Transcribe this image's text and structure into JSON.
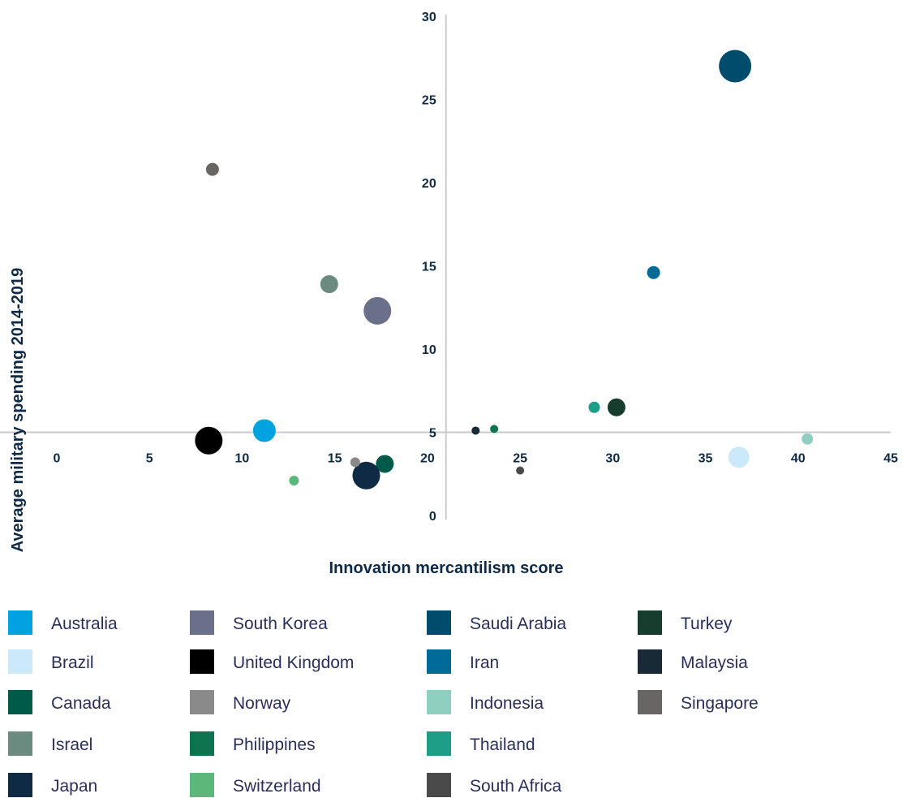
{
  "chart_data": {
    "type": "scatter",
    "title": "",
    "xlabel": "Innovation mercantilism score",
    "ylabel": "Average military spending 2014-2019",
    "xlim": [
      0,
      45
    ],
    "ylim": [
      0,
      30
    ],
    "x_ticks": [
      0,
      5,
      10,
      15,
      20,
      25,
      30,
      35,
      40,
      45
    ],
    "y_ticks": [
      0,
      5,
      10,
      15,
      20,
      25,
      30
    ],
    "axis_cross": {
      "x": 21,
      "y": 5
    },
    "grid": false,
    "legend_position": "bottom",
    "series": [
      {
        "name": "Australia",
        "color": "#00a3e0",
        "x": 11.2,
        "y": 5.1,
        "size": 14
      },
      {
        "name": "Brazil",
        "color": "#cce9fa",
        "x": 36.8,
        "y": 3.5,
        "size": 13
      },
      {
        "name": "Canada",
        "color": "#005a4a",
        "x": 17.7,
        "y": 3.1,
        "size": 11
      },
      {
        "name": "Israel",
        "color": "#6b8a80",
        "x": 14.7,
        "y": 13.9,
        "size": 11
      },
      {
        "name": "Japan",
        "color": "#0f2a44",
        "x": 16.7,
        "y": 2.4,
        "size": 17
      },
      {
        "name": "South Korea",
        "color": "#6a7089",
        "x": 17.3,
        "y": 12.3,
        "size": 17
      },
      {
        "name": "United Kingdom",
        "color": "#000000",
        "x": 8.2,
        "y": 4.5,
        "size": 17
      },
      {
        "name": "Norway",
        "color": "#8a8a8a",
        "x": 16.1,
        "y": 3.2,
        "size": 6
      },
      {
        "name": "Philippines",
        "color": "#0e7450",
        "x": 23.6,
        "y": 5.2,
        "size": 5
      },
      {
        "name": "Switzerland",
        "color": "#5bb87a",
        "x": 12.8,
        "y": 2.1,
        "size": 6
      },
      {
        "name": "Saudi Arabia",
        "color": "#004c6d",
        "x": 36.6,
        "y": 27.0,
        "size": 20
      },
      {
        "name": "Iran",
        "color": "#006b96",
        "x": 32.2,
        "y": 14.6,
        "size": 8
      },
      {
        "name": "Indonesia",
        "color": "#8ecfbf",
        "x": 40.5,
        "y": 4.6,
        "size": 7
      },
      {
        "name": "Thailand",
        "color": "#1e9e86",
        "x": 29.0,
        "y": 6.5,
        "size": 7
      },
      {
        "name": "South Africa",
        "color": "#4a4a4a",
        "x": 25.0,
        "y": 2.7,
        "size": 5
      },
      {
        "name": "Turkey",
        "color": "#173d2e",
        "x": 30.2,
        "y": 6.5,
        "size": 11
      },
      {
        "name": "Malaysia",
        "color": "#182a36",
        "x": 22.6,
        "y": 5.1,
        "size": 5
      },
      {
        "name": "Singapore",
        "color": "#6a6565",
        "x": 8.4,
        "y": 20.8,
        "size": 8
      }
    ]
  },
  "legend": {
    "columns": [
      [
        "Australia",
        "Brazil",
        "Canada",
        "Israel",
        "Japan"
      ],
      [
        "South Korea",
        "United Kingdom",
        "Norway",
        "Philippines",
        "Switzerland"
      ],
      [
        "Saudi Arabia",
        "Iran",
        "Indonesia",
        "Thailand",
        "South Africa"
      ],
      [
        "Turkey",
        "Malaysia",
        "Singapore"
      ]
    ]
  },
  "colors": {
    "axis": "#c9c9cf",
    "tick_text": "#0f2a44",
    "legend_text": "#2a2f5a"
  }
}
